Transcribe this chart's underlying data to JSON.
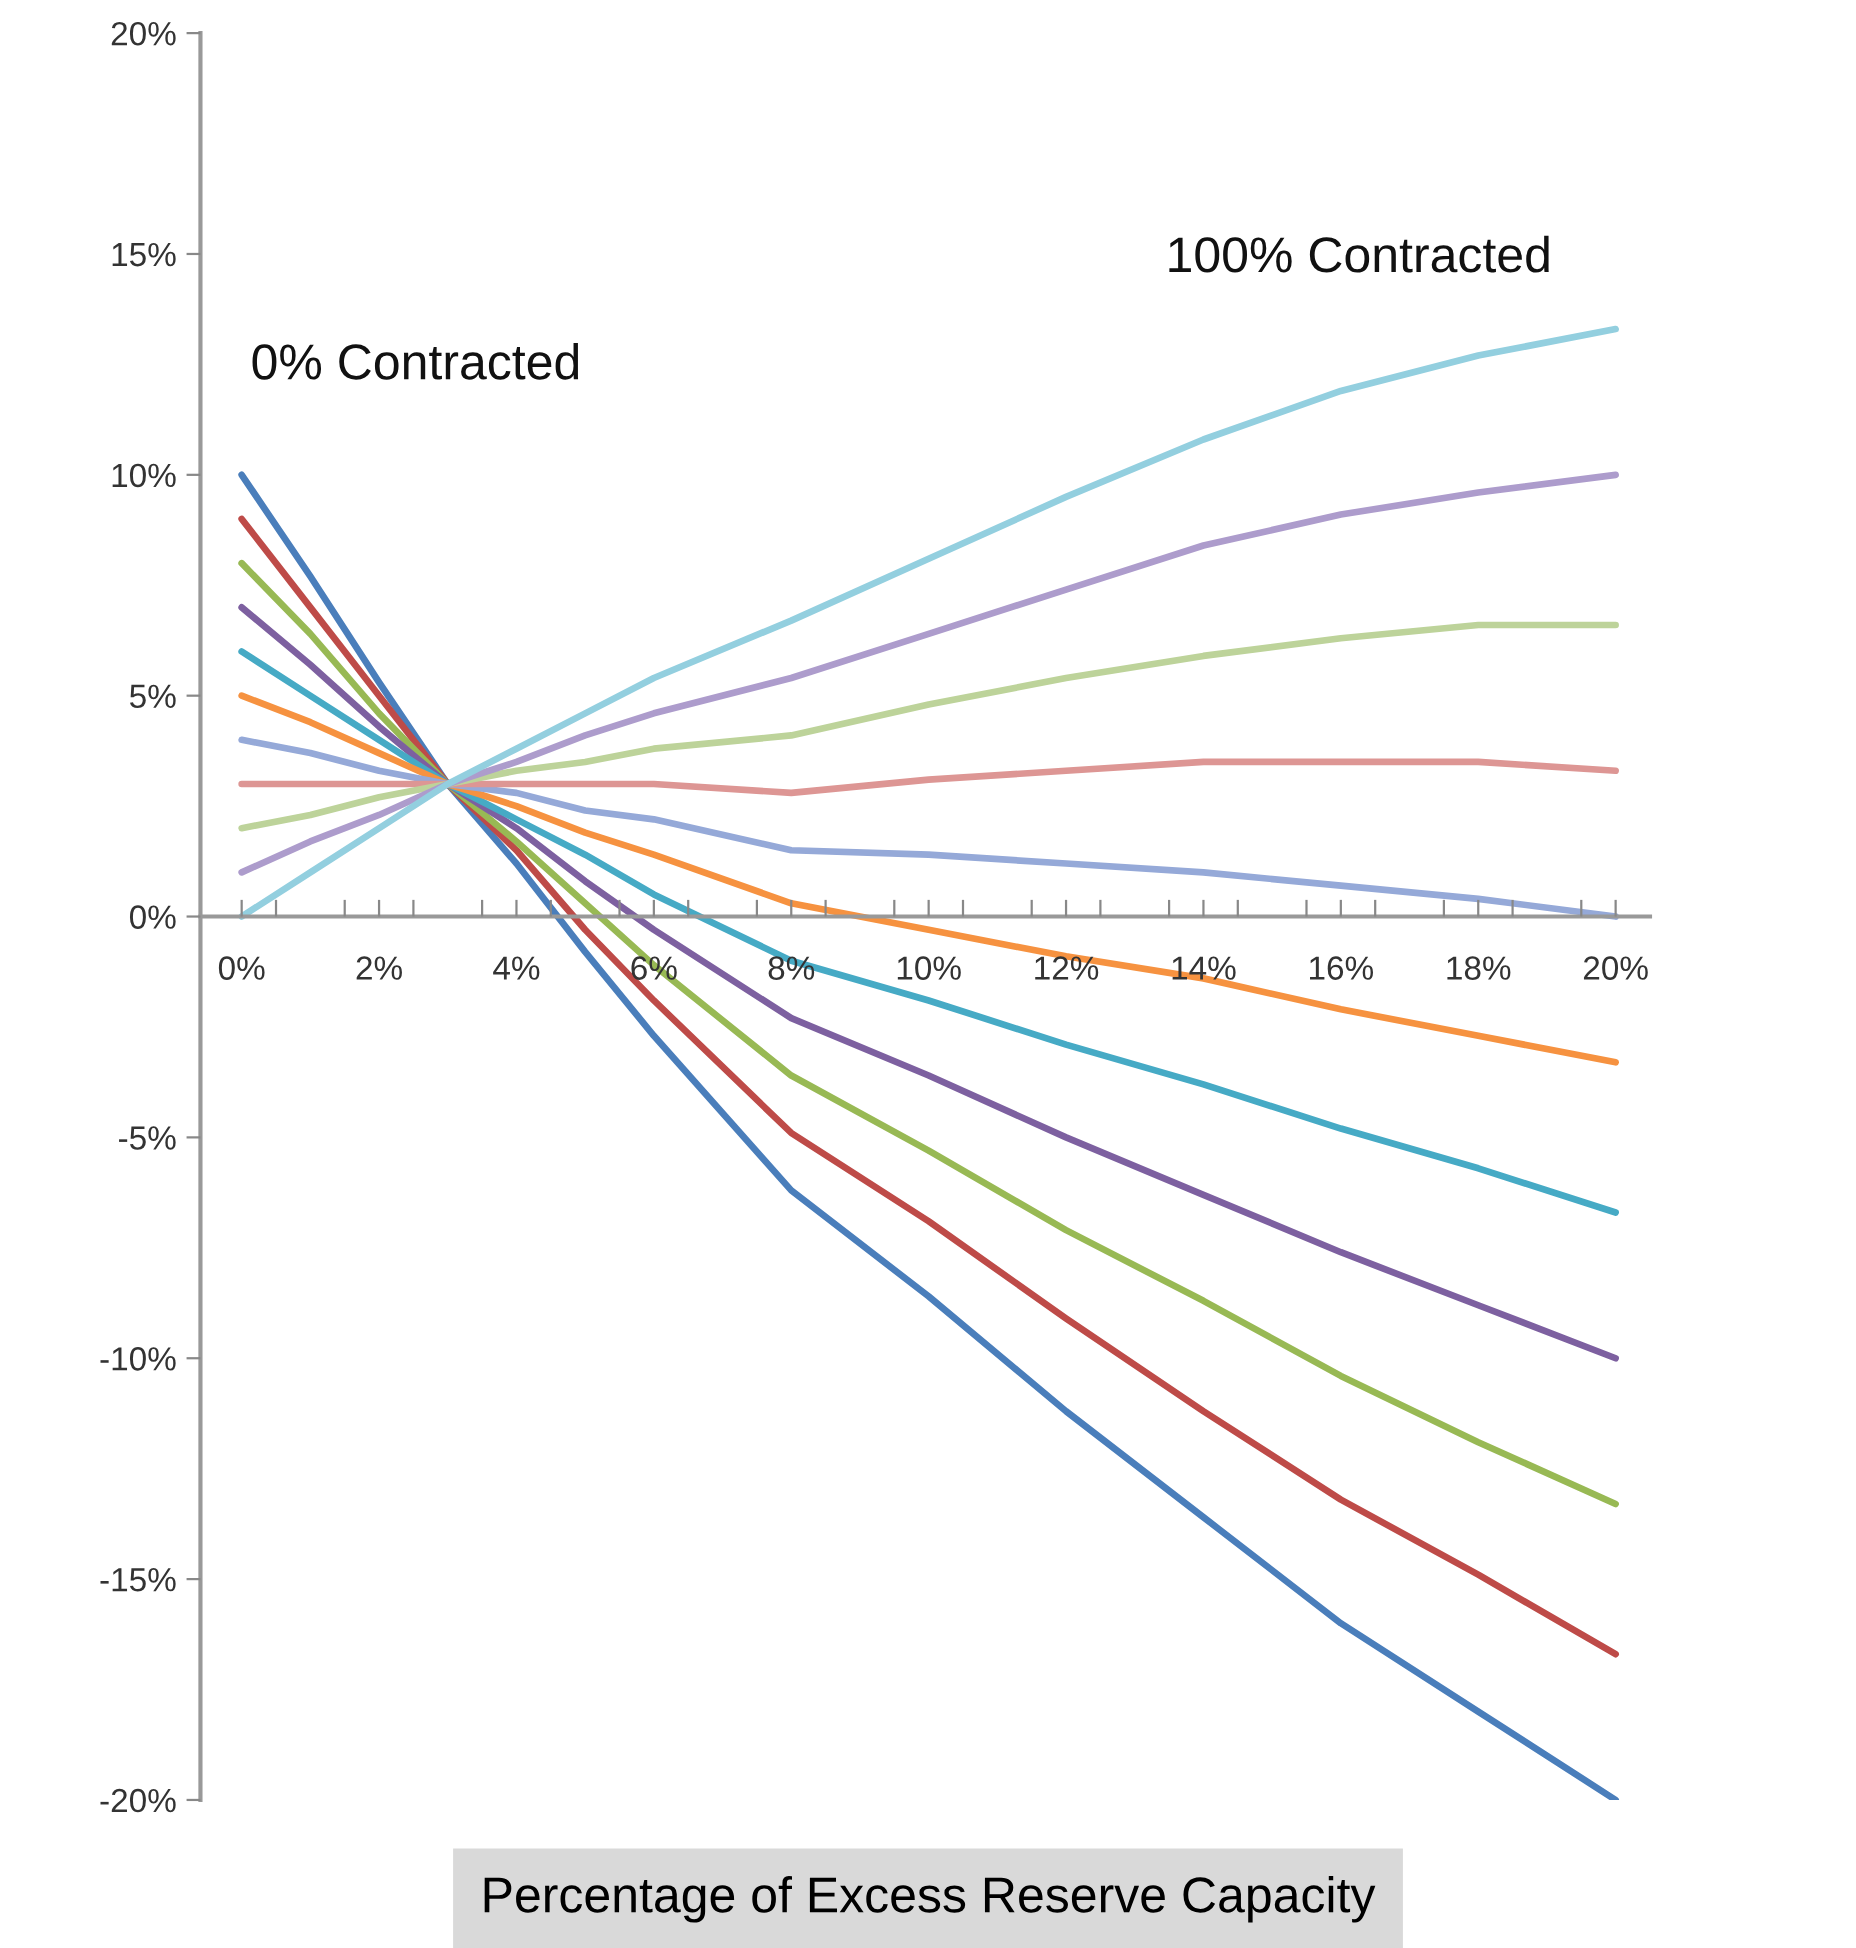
{
  "chart_data": {
    "type": "line",
    "xlabel": "Percentage of Excess Reserve Capacity",
    "annotations": [
      "0% Contracted",
      "100% Contracted"
    ],
    "x": [
      0,
      1,
      2,
      3,
      4,
      5,
      6,
      8,
      10,
      12,
      14,
      16,
      18,
      20
    ],
    "series": [
      {
        "color": "#4a7ebb",
        "values": [
          10,
          7.7,
          5.3,
          3,
          1.2,
          -0.8,
          -2.7,
          -6.2,
          -8.6,
          -11.2,
          -13.6,
          -16.0,
          -18.0,
          -20.0
        ]
      },
      {
        "color": "#be4b48",
        "values": [
          9,
          7.0,
          5.0,
          3,
          1.5,
          -0.3,
          -1.9,
          -4.9,
          -6.9,
          -9.1,
          -11.2,
          -13.2,
          -14.9,
          -16.7
        ]
      },
      {
        "color": "#98b954",
        "values": [
          8,
          6.4,
          4.6,
          3,
          1.7,
          0.3,
          -1.1,
          -3.6,
          -5.3,
          -7.1,
          -8.7,
          -10.4,
          -11.9,
          -13.3
        ]
      },
      {
        "color": "#7d60a0",
        "values": [
          7,
          5.7,
          4.3,
          3,
          2.0,
          0.8,
          -0.3,
          -2.3,
          -3.6,
          -5.0,
          -6.3,
          -7.6,
          -8.8,
          -10.0
        ]
      },
      {
        "color": "#46aac5",
        "values": [
          6,
          5.0,
          4.0,
          3,
          2.2,
          1.4,
          0.5,
          -1.0,
          -1.9,
          -2.9,
          -3.8,
          -4.8,
          -5.7,
          -6.7
        ]
      },
      {
        "color": "#f69240",
        "values": [
          5,
          4.4,
          3.7,
          3,
          2.5,
          1.9,
          1.4,
          0.3,
          -0.3,
          -0.9,
          -1.4,
          -2.1,
          -2.7,
          -3.3
        ]
      },
      {
        "color": "#95a9d8",
        "values": [
          4,
          3.7,
          3.3,
          3,
          2.8,
          2.4,
          2.2,
          1.5,
          1.4,
          1.2,
          1.0,
          0.7,
          0.4,
          0.0
        ]
      },
      {
        "color": "#dd9694",
        "values": [
          3,
          3.0,
          3.0,
          3,
          3.0,
          3.0,
          3.0,
          2.8,
          3.1,
          3.3,
          3.5,
          3.5,
          3.5,
          3.3
        ]
      },
      {
        "color": "#bdd39a",
        "values": [
          2,
          2.3,
          2.7,
          3,
          3.3,
          3.5,
          3.8,
          4.1,
          4.8,
          5.4,
          5.9,
          6.3,
          6.6,
          6.6
        ]
      },
      {
        "color": "#ad9ccc",
        "values": [
          1,
          1.7,
          2.3,
          3,
          3.5,
          4.1,
          4.6,
          5.4,
          6.4,
          7.4,
          8.4,
          9.1,
          9.6,
          10.0
        ]
      },
      {
        "color": "#93cfdf",
        "values": [
          0,
          1,
          2,
          3,
          3.8,
          4.6,
          5.4,
          6.7,
          8.1,
          9.5,
          10.8,
          11.9,
          12.7,
          13.3
        ]
      }
    ],
    "xlim": [
      -0.6,
      20.5
    ],
    "xticks": [
      {
        "value": 0,
        "label": "0%"
      },
      {
        "value": 0.5,
        "label": null
      },
      {
        "value": 1.5,
        "label": null
      },
      {
        "value": 2,
        "label": "2%"
      },
      {
        "value": 2.5,
        "label": null
      },
      {
        "value": 3.5,
        "label": null
      },
      {
        "value": 4,
        "label": "4%"
      },
      {
        "value": 4.5,
        "label": null
      },
      {
        "value": 5.5,
        "label": null
      },
      {
        "value": 6,
        "label": "6%"
      },
      {
        "value": 6.5,
        "label": null
      },
      {
        "value": 7.5,
        "label": null
      },
      {
        "value": 8,
        "label": "8%"
      },
      {
        "value": 8.5,
        "label": null
      },
      {
        "value": 9.5,
        "label": null
      },
      {
        "value": 10,
        "label": "10%"
      },
      {
        "value": 10.5,
        "label": null
      },
      {
        "value": 11.5,
        "label": null
      },
      {
        "value": 12,
        "label": "12%"
      },
      {
        "value": 12.5,
        "label": null
      },
      {
        "value": 13.5,
        "label": null
      },
      {
        "value": 14,
        "label": "14%"
      },
      {
        "value": 14.5,
        "label": null
      },
      {
        "value": 15.5,
        "label": null
      },
      {
        "value": 16,
        "label": "16%"
      },
      {
        "value": 16.5,
        "label": null
      },
      {
        "value": 17.5,
        "label": null
      },
      {
        "value": 18,
        "label": "18%"
      },
      {
        "value": 18.5,
        "label": null
      },
      {
        "value": 19.5,
        "label": null
      },
      {
        "value": 20,
        "label": "20%"
      }
    ],
    "ylim": [
      -20,
      20
    ],
    "yticks": [
      {
        "value": -20,
        "label": "-20%"
      },
      {
        "value": -15,
        "label": "-15%"
      },
      {
        "value": -10,
        "label": "-10%"
      },
      {
        "value": -5,
        "label": "-5%"
      },
      {
        "value": 0,
        "label": "0%"
      },
      {
        "value": 5,
        "label": "5%"
      },
      {
        "value": 10,
        "label": "10%"
      },
      {
        "value": 15,
        "label": "15%"
      },
      {
        "value": 20,
        "label": "20%"
      }
    ],
    "grid": false,
    "marker": "none",
    "line_style": "solid"
  }
}
